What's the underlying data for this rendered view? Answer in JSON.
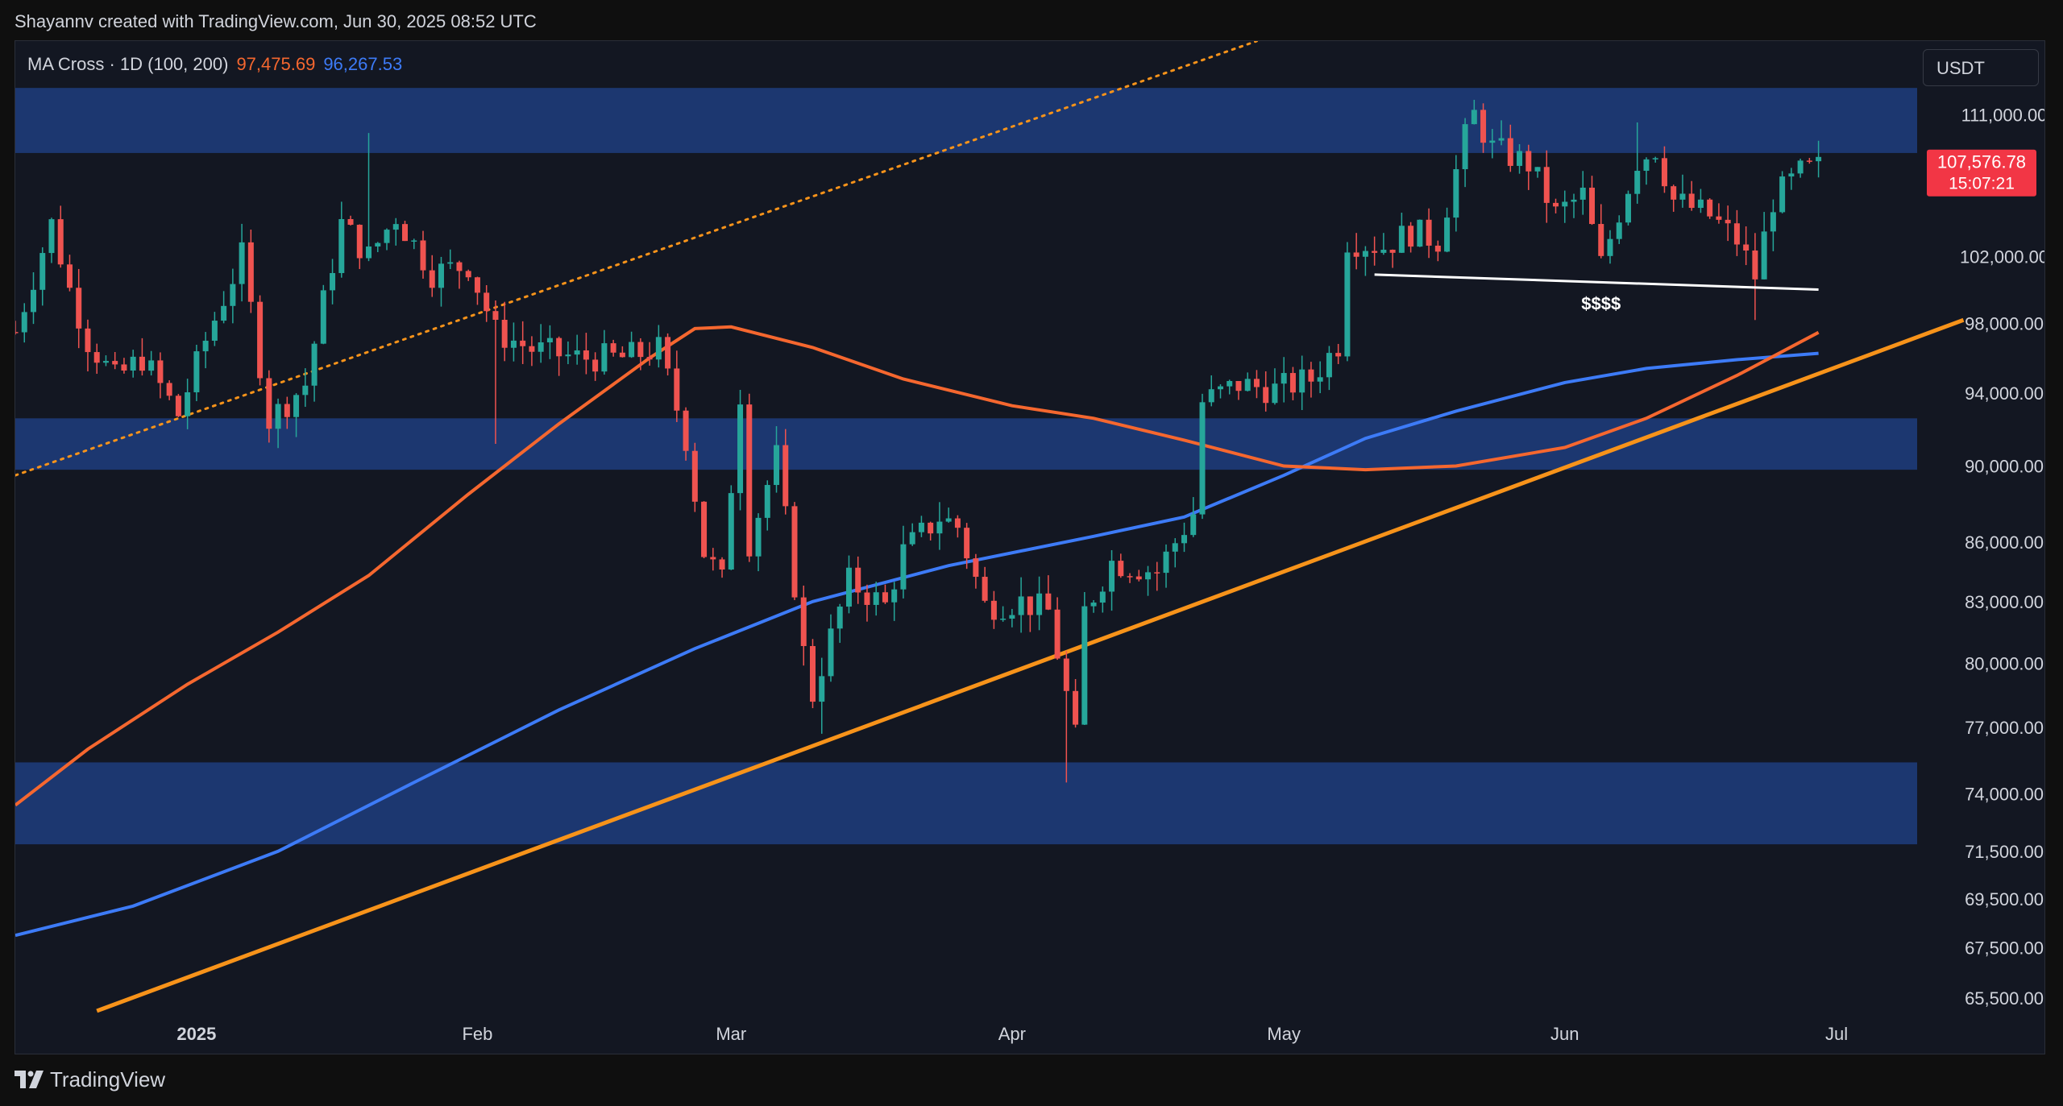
{
  "header": {
    "credit": "Shayannv created with TradingView.com, Jun 30, 2025 08:52 UTC"
  },
  "indicator": {
    "label": "MA Cross · 1D (100, 200)",
    "ma100_value": "97,475.69",
    "ma200_value": "96,267.53",
    "ma100_color": "#f5672f",
    "ma200_color": "#3d7bf7"
  },
  "currency_button": {
    "label": "USDT"
  },
  "footer": {
    "brand": "TradingView",
    "icon": "tradingview-logo-icon"
  },
  "colors": {
    "background": "#131722",
    "up_candle": "#26a69a",
    "down_candle": "#ef5350",
    "zone": "#1e3d7e",
    "trendline": "#f7931a"
  },
  "chart_data": {
    "type": "candlestick",
    "symbol_quote": "USDT",
    "y_scale": "log",
    "ylim": [
      64500,
      116000
    ],
    "xlim": [
      "2024-12-12",
      "2025-07-17"
    ],
    "y_ticks": [
      111000,
      102000,
      98000,
      94000,
      90000,
      86000,
      83000,
      80000,
      77000,
      74000,
      71500,
      69500,
      67500,
      65500
    ],
    "y_tick_labels": [
      "111,000.00",
      "102,000.00",
      "98,000.00",
      "94,000.00",
      "90,000.00",
      "86,000.00",
      "83,000.00",
      "80,000.00",
      "77,000.00",
      "74,000.00",
      "71,500.00",
      "69,500.00",
      "67,500.00",
      "65,500.00"
    ],
    "x_ticks": [
      {
        "label": "2025",
        "date": "2025-01-01",
        "bold": true
      },
      {
        "label": "Feb",
        "date": "2025-02-01",
        "bold": false
      },
      {
        "label": "Mar",
        "date": "2025-03-01",
        "bold": false
      },
      {
        "label": "Apr",
        "date": "2025-04-01",
        "bold": false
      },
      {
        "label": "May",
        "date": "2025-05-01",
        "bold": false
      },
      {
        "label": "Jun",
        "date": "2025-06-01",
        "bold": false
      },
      {
        "label": "Jul",
        "date": "2025-07-01",
        "bold": false
      }
    ],
    "last_price": {
      "label": "107,576.78",
      "value": 107576.78,
      "countdown": "15:07:21"
    },
    "zones": [
      {
        "low": 108500,
        "high": 112800
      },
      {
        "low": 89800,
        "high": 92600
      },
      {
        "low": 71800,
        "high": 75400
      }
    ],
    "main_trendline": {
      "from": {
        "date": "2024-12-21",
        "price": 65000
      },
      "to": {
        "date": "2025-07-15",
        "price": 98200
      }
    },
    "dotted_trendline": {
      "from": {
        "date": "2024-12-12",
        "price": 89500
      },
      "to": {
        "date": "2025-04-28",
        "price": 116000
      }
    },
    "liquidity_line": {
      "from": {
        "date": "2025-05-11",
        "price": 100900
      },
      "to": {
        "date": "2025-06-29",
        "price": 100000
      },
      "label": "$$$$",
      "label_date": "2025-06-05",
      "label_price": 98800
    },
    "ma100": [
      {
        "date": "2024-12-12",
        "value": 73500
      },
      {
        "date": "2024-12-20",
        "value": 76000
      },
      {
        "date": "2024-12-31",
        "value": 79000
      },
      {
        "date": "2025-01-10",
        "value": 81500
      },
      {
        "date": "2025-01-20",
        "value": 84300
      },
      {
        "date": "2025-01-31",
        "value": 88500
      },
      {
        "date": "2025-02-10",
        "value": 92300
      },
      {
        "date": "2025-02-20",
        "value": 96000
      },
      {
        "date": "2025-02-25",
        "value": 97700
      },
      {
        "date": "2025-03-01",
        "value": 97800
      },
      {
        "date": "2025-03-10",
        "value": 96600
      },
      {
        "date": "2025-03-20",
        "value": 94800
      },
      {
        "date": "2025-04-01",
        "value": 93300
      },
      {
        "date": "2025-04-10",
        "value": 92600
      },
      {
        "date": "2025-04-20",
        "value": 91400
      },
      {
        "date": "2025-05-01",
        "value": 90000
      },
      {
        "date": "2025-05-10",
        "value": 89800
      },
      {
        "date": "2025-05-20",
        "value": 90000
      },
      {
        "date": "2025-06-01",
        "value": 91000
      },
      {
        "date": "2025-06-10",
        "value": 92600
      },
      {
        "date": "2025-06-20",
        "value": 95000
      },
      {
        "date": "2025-06-29",
        "value": 97475.69
      }
    ],
    "ma200": [
      {
        "date": "2024-12-12",
        "value": 68000
      },
      {
        "date": "2024-12-25",
        "value": 69200
      },
      {
        "date": "2025-01-10",
        "value": 71500
      },
      {
        "date": "2025-01-25",
        "value": 74500
      },
      {
        "date": "2025-02-10",
        "value": 77800
      },
      {
        "date": "2025-02-25",
        "value": 80700
      },
      {
        "date": "2025-03-10",
        "value": 83000
      },
      {
        "date": "2025-03-25",
        "value": 84800
      },
      {
        "date": "2025-04-10",
        "value": 86300
      },
      {
        "date": "2025-04-20",
        "value": 87300
      },
      {
        "date": "2025-05-01",
        "value": 89500
      },
      {
        "date": "2025-05-10",
        "value": 91500
      },
      {
        "date": "2025-05-20",
        "value": 93000
      },
      {
        "date": "2025-06-01",
        "value": 94600
      },
      {
        "date": "2025-06-10",
        "value": 95400
      },
      {
        "date": "2025-06-20",
        "value": 95900
      },
      {
        "date": "2025-06-29",
        "value": 96267.53
      }
    ],
    "close_anchors": [
      {
        "date": "2024-12-12",
        "value": 97500
      },
      {
        "date": "2024-12-16",
        "value": 104000
      },
      {
        "date": "2024-12-18",
        "value": 100000
      },
      {
        "date": "2024-12-20",
        "value": 97000
      },
      {
        "date": "2024-12-23",
        "value": 94800
      },
      {
        "date": "2024-12-26",
        "value": 96000
      },
      {
        "date": "2024-12-30",
        "value": 92800
      },
      {
        "date": "2025-01-02",
        "value": 97000
      },
      {
        "date": "2025-01-06",
        "value": 102000
      },
      {
        "date": "2025-01-09",
        "value": 92500
      },
      {
        "date": "2025-01-13",
        "value": 94500
      },
      {
        "date": "2025-01-17",
        "value": 104000
      },
      {
        "date": "2025-01-20",
        "value": 102000
      },
      {
        "date": "2025-01-23",
        "value": 104500
      },
      {
        "date": "2025-01-27",
        "value": 101000
      },
      {
        "date": "2025-01-31",
        "value": 101500
      },
      {
        "date": "2025-02-03",
        "value": 97500
      },
      {
        "date": "2025-02-07",
        "value": 96500
      },
      {
        "date": "2025-02-12",
        "value": 96000
      },
      {
        "date": "2025-02-17",
        "value": 96000
      },
      {
        "date": "2025-02-21",
        "value": 96500
      },
      {
        "date": "2025-02-24",
        "value": 91500
      },
      {
        "date": "2025-02-26",
        "value": 85500
      },
      {
        "date": "2025-02-28",
        "value": 84000
      },
      {
        "date": "2025-03-02",
        "value": 94000
      },
      {
        "date": "2025-03-03",
        "value": 86000
      },
      {
        "date": "2025-03-06",
        "value": 90500
      },
      {
        "date": "2025-03-09",
        "value": 80500
      },
      {
        "date": "2025-03-10",
        "value": 78500
      },
      {
        "date": "2025-03-14",
        "value": 84000
      },
      {
        "date": "2025-03-18",
        "value": 82800
      },
      {
        "date": "2025-03-20",
        "value": 85500
      },
      {
        "date": "2025-03-24",
        "value": 87300
      },
      {
        "date": "2025-03-26",
        "value": 86800
      },
      {
        "date": "2025-03-29",
        "value": 82800
      },
      {
        "date": "2025-04-02",
        "value": 83000
      },
      {
        "date": "2025-04-05",
        "value": 82500
      },
      {
        "date": "2025-04-07",
        "value": 78500
      },
      {
        "date": "2025-04-08",
        "value": 76500
      },
      {
        "date": "2025-04-09",
        "value": 82500
      },
      {
        "date": "2025-04-12",
        "value": 85000
      },
      {
        "date": "2025-04-17",
        "value": 84500
      },
      {
        "date": "2025-04-21",
        "value": 87500
      },
      {
        "date": "2025-04-22",
        "value": 93500
      },
      {
        "date": "2025-04-26",
        "value": 94500
      },
      {
        "date": "2025-04-30",
        "value": 94200
      },
      {
        "date": "2025-05-04",
        "value": 94800
      },
      {
        "date": "2025-05-07",
        "value": 96800
      },
      {
        "date": "2025-05-08",
        "value": 103000
      },
      {
        "date": "2025-05-12",
        "value": 102600
      },
      {
        "date": "2025-05-15",
        "value": 103500
      },
      {
        "date": "2025-05-18",
        "value": 103000
      },
      {
        "date": "2025-05-21",
        "value": 109500
      },
      {
        "date": "2025-05-22",
        "value": 111000
      },
      {
        "date": "2025-05-24",
        "value": 108800
      },
      {
        "date": "2025-05-28",
        "value": 107800
      },
      {
        "date": "2025-05-31",
        "value": 104600
      },
      {
        "date": "2025-06-03",
        "value": 105800
      },
      {
        "date": "2025-06-05",
        "value": 101500
      },
      {
        "date": "2025-06-09",
        "value": 108000
      },
      {
        "date": "2025-06-11",
        "value": 108800
      },
      {
        "date": "2025-06-13",
        "value": 105500
      },
      {
        "date": "2025-06-17",
        "value": 104500
      },
      {
        "date": "2025-06-20",
        "value": 103000
      },
      {
        "date": "2025-06-22",
        "value": 100800
      },
      {
        "date": "2025-06-24",
        "value": 105500
      },
      {
        "date": "2025-06-27",
        "value": 107200
      },
      {
        "date": "2025-06-29",
        "value": 107576.78
      }
    ],
    "marked_extremes": [
      {
        "date": "2025-01-20",
        "kind": "high",
        "value": 109800
      },
      {
        "date": "2025-02-03",
        "kind": "low",
        "value": 91200
      },
      {
        "date": "2025-03-11",
        "kind": "low",
        "value": 76700
      },
      {
        "date": "2025-04-07",
        "kind": "low",
        "value": 74500
      },
      {
        "date": "2025-05-22",
        "kind": "high",
        "value": 112000
      },
      {
        "date": "2025-06-09",
        "kind": "high",
        "value": 110500
      },
      {
        "date": "2025-06-22",
        "kind": "low",
        "value": 98200
      }
    ]
  }
}
